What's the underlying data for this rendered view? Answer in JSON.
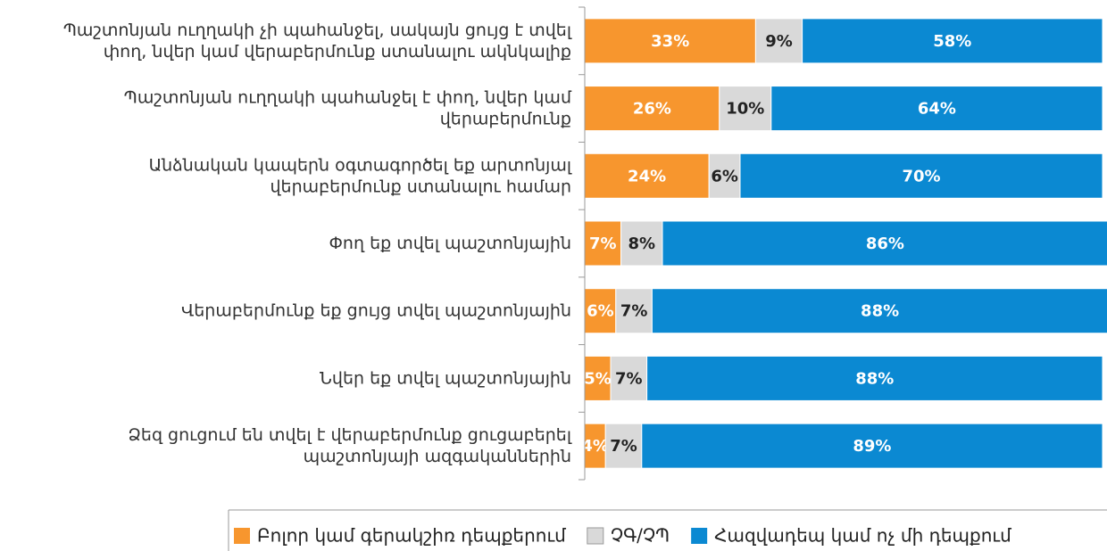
{
  "chart_data": {
    "type": "stacked-barh",
    "categories": [
      [
        "Պաշտոնյան ուղղակի չի պահանջել, սակայն ցույց է տվել",
        "փող, նվեր կամ վերաբերմունք ստանալու ակնկալիք"
      ],
      [
        "Պաշտոնյան ուղղակի պահանջել է փող, նվեր կամ",
        "վերաբերմունք"
      ],
      [
        "Անձնական կապերն օգտագործել եք արտոնյալ",
        "վերաբերմունք ստանալու համար"
      ],
      [
        "Փող եք տվել պաշտոնյային"
      ],
      [
        "Վերաբերմունք եք ցույց տվել պաշտոնյային"
      ],
      [
        "Նվեր եք տվել պաշտոնյային"
      ],
      [
        "Ձեզ ցուցում են տվել է վերաբերմունք ցուցաբերել",
        "պաշտոնյայի ազգականներին"
      ]
    ],
    "series": [
      {
        "name": "Բոլոր կամ գերակշիռ դեպքերում",
        "color": "#f7962e",
        "label_color": "#ffffff",
        "values": [
          33,
          26,
          24,
          7,
          6,
          5,
          4
        ],
        "value_labels": [
          "33%",
          "26%",
          "24%",
          "7%",
          "6%",
          "5%",
          "4%"
        ]
      },
      {
        "name": "ՉԳ/ՉՊ",
        "color": "#d9d9d9",
        "label_color": "#222222",
        "values": [
          9,
          10,
          6,
          8,
          7,
          7,
          7
        ],
        "value_labels": [
          "9%",
          "10%",
          "6%",
          "8%",
          "7%",
          "7%",
          "7%"
        ]
      },
      {
        "name": "Հազվադեպ կամ ոչ մի դեպքում",
        "color": "#0b89d2",
        "label_color": "#ffffff",
        "values": [
          58,
          64,
          70,
          86,
          88,
          88,
          89
        ],
        "value_labels": [
          "58%",
          "64%",
          "70%",
          "86%",
          "88%",
          "88%",
          "89%"
        ]
      }
    ],
    "xlim": [
      0,
      100
    ]
  }
}
